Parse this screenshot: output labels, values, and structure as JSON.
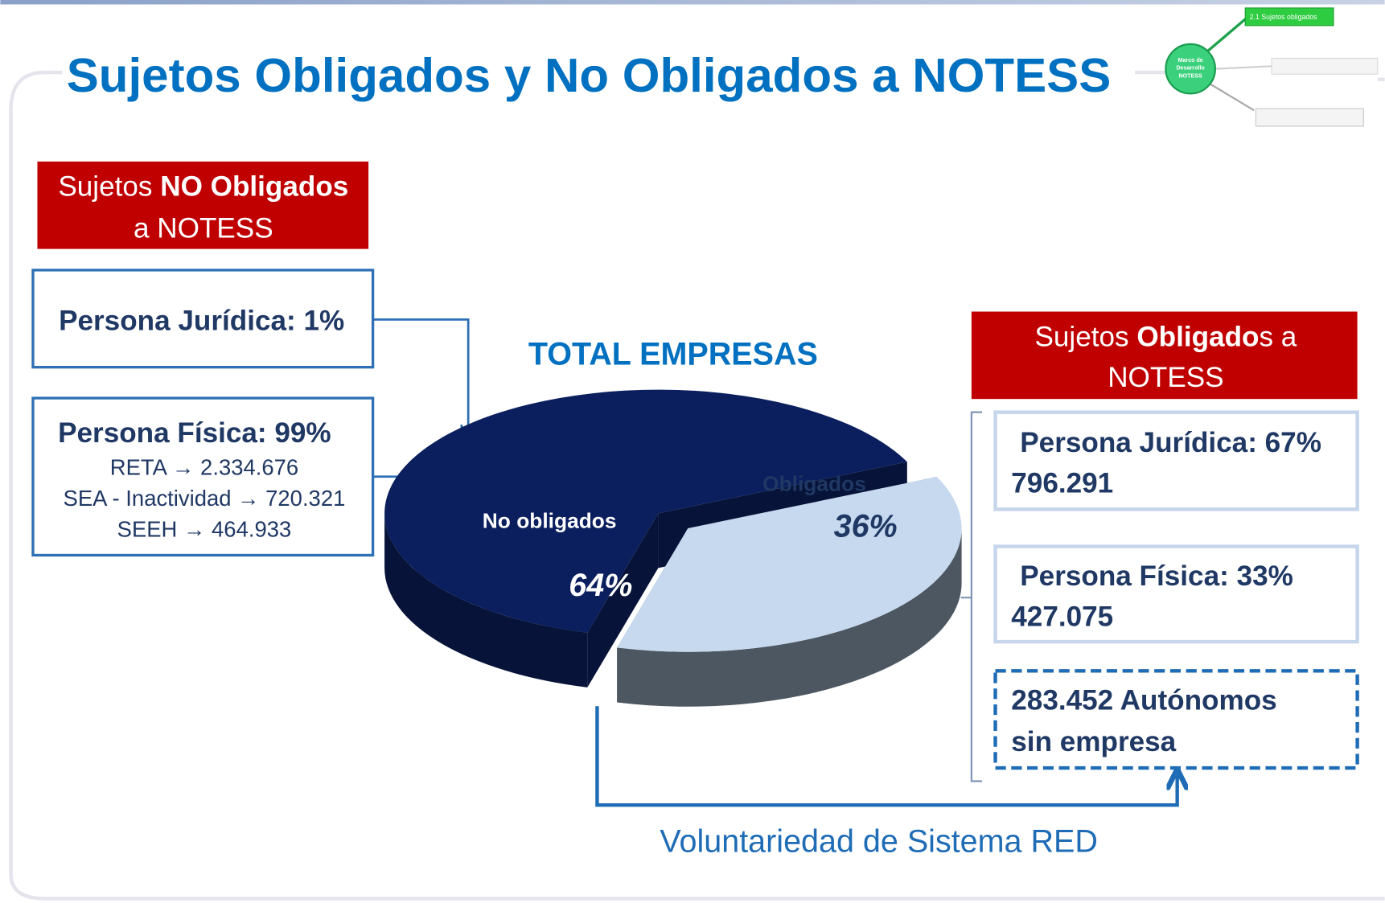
{
  "slide": {
    "title": "Sujetos Obligados y No Obligados a NOTESS"
  },
  "no_obligados": {
    "heading": [
      "Sujetos ",
      "NO Obligados",
      "a NOTESS"
    ],
    "juridica": "Persona Jurídica: 1%",
    "fisica": "Persona Física: 99%",
    "details": [
      "RETA → 2.334.676",
      "SEA - Inactividad → 720.321",
      "SEEH → 464.933"
    ]
  },
  "obligados": {
    "heading": [
      "Sujetos ",
      "Obligado",
      "s a",
      "NOTESS"
    ],
    "juridica": [
      "Persona Jurídica: 67%",
      "796.291"
    ],
    "fisica": [
      "Persona Física: 33%",
      "427.075"
    ],
    "autonomos": [
      "283.452 Autónomos",
      "sin empresa"
    ]
  },
  "footer": "Voluntariedad de Sistema RED",
  "nav": {
    "center": [
      "Marco de",
      "Desarrollo",
      "NOTESS"
    ],
    "items": [
      "2.1 Sujetos obligados"
    ]
  },
  "chart_data": {
    "type": "pie",
    "title": "TOTAL EMPRESAS",
    "categories": [
      "No obligados",
      "Obligados"
    ],
    "values": [
      64,
      36
    ],
    "value_labels": [
      "64%",
      "36%"
    ],
    "colors": [
      "#0b1f5e",
      "#c6d9ef"
    ]
  }
}
